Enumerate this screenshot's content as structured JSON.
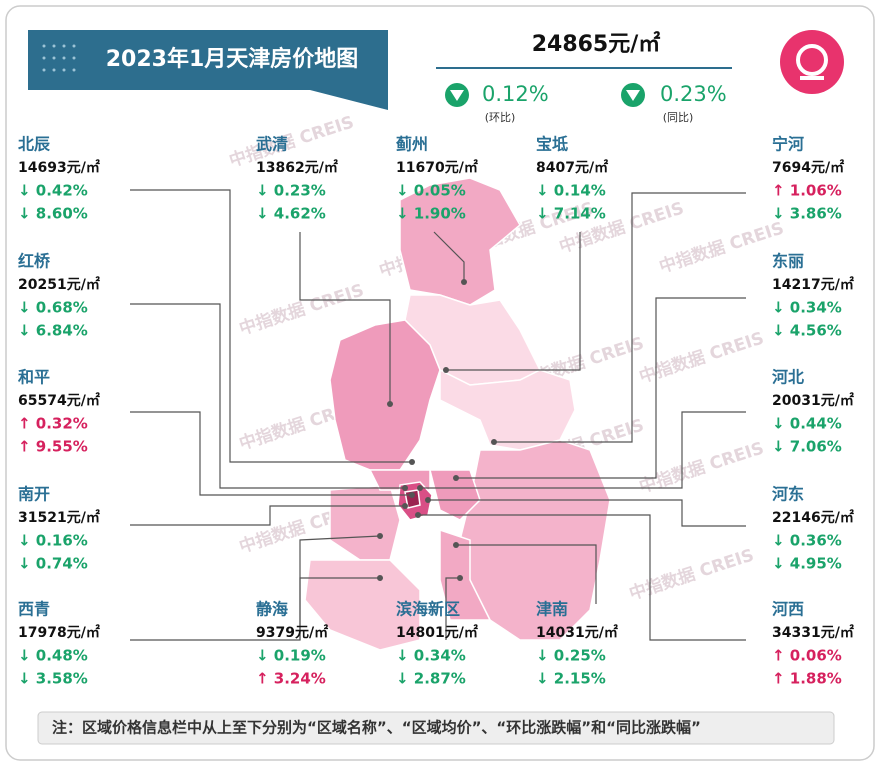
{
  "header": {
    "title": "2023年1月天津房价地图",
    "overall_price": "24865元/㎡",
    "mom": "0.12%",
    "mom_label": "(环比)",
    "yoy": "0.23%",
    "yoy_label": "(同比)"
  },
  "watermark": "中指数据 CREIS",
  "districts": [
    {
      "name": "北辰",
      "price": "14693元/㎡",
      "mom": "↓ 0.42%",
      "yoy": "↓ 8.60%"
    },
    {
      "name": "红桥",
      "price": "20251元/㎡",
      "mom": "↓ 0.68%",
      "yoy": "↓ 6.84%"
    },
    {
      "name": "和平",
      "price": "65574元/㎡",
      "mom": "↑ 0.32%",
      "yoy": "↑ 9.55%"
    },
    {
      "name": "南开",
      "price": "31521元/㎡",
      "mom": "↓ 0.16%",
      "yoy": "↓ 0.74%"
    },
    {
      "name": "西青",
      "price": "17978元/㎡",
      "mom": "↓ 0.48%",
      "yoy": "↓ 3.58%"
    },
    {
      "name": "武清",
      "price": "13862元/㎡",
      "mom": "↓ 0.23%",
      "yoy": "↓ 4.62%"
    },
    {
      "name": "静海",
      "price": "9379元/㎡",
      "mom": "↓ 0.19%",
      "yoy": "↑ 3.24%"
    },
    {
      "name": "蓟州",
      "price": "11670元/㎡",
      "mom": "↓ 0.05%",
      "yoy": "↓ 1.90%"
    },
    {
      "name": "滨海新区",
      "price": "14801元/㎡",
      "mom": "↓ 0.34%",
      "yoy": "↓ 2.87%"
    },
    {
      "name": "宝坻",
      "price": "8407元/㎡",
      "mom": "↓ 0.14%",
      "yoy": "↓ 7.14%"
    },
    {
      "name": "津南",
      "price": "14031元/㎡",
      "mom": "↓ 0.25%",
      "yoy": "↓ 2.15%"
    },
    {
      "name": "宁河",
      "price": "7694元/㎡",
      "mom": "↑ 1.06%",
      "yoy": "↓ 3.86%"
    },
    {
      "name": "东丽",
      "price": "14217元/㎡",
      "mom": "↓ 0.34%",
      "yoy": "↓ 4.56%"
    },
    {
      "name": "河北",
      "price": "20031元/㎡",
      "mom": "↓ 0.44%",
      "yoy": "↓ 7.06%"
    },
    {
      "name": "河东",
      "price": "22146元/㎡",
      "mom": "↓ 0.36%",
      "yoy": "↓ 4.95%"
    },
    {
      "name": "河西",
      "price": "34331元/㎡",
      "mom": "↑ 0.06%",
      "yoy": "↑ 1.88%"
    }
  ],
  "note": "注：区域价格信息栏中从上至下分别为“区域名称”、“区域均价”、“环比涨跌幅”和“同比涨跌幅”"
}
